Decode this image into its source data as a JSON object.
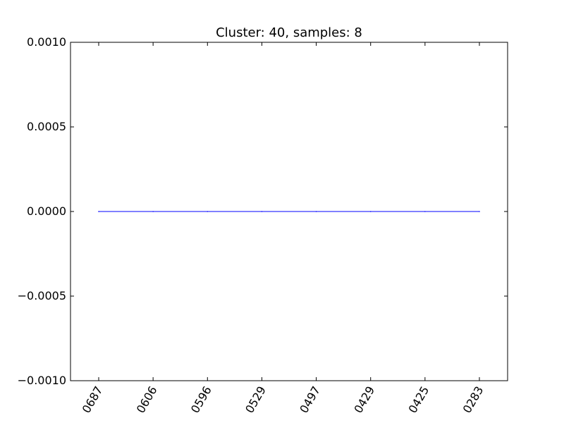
{
  "chart_data": {
    "type": "line",
    "title": "Cluster: 40, samples: 8",
    "xlabel": "",
    "ylabel": "",
    "categories": [
      "0687",
      "0606",
      "0596",
      "0529",
      "0497",
      "0429",
      "0425",
      "0283"
    ],
    "series": [
      {
        "values": [
          0,
          0,
          0,
          0,
          0,
          0,
          0,
          0
        ],
        "color": "#0000ff"
      }
    ],
    "ylim": [
      -0.001,
      0.001
    ],
    "yticks": [
      {
        "value": 0.001,
        "label": "0.0010"
      },
      {
        "value": 0.0005,
        "label": "0.0005"
      },
      {
        "value": 0,
        "label": "0.0000"
      },
      {
        "value": -0.0005,
        "label": "−0.0005"
      },
      {
        "value": -0.001,
        "label": "−0.0010"
      }
    ],
    "grid": false,
    "legend": "none"
  }
}
